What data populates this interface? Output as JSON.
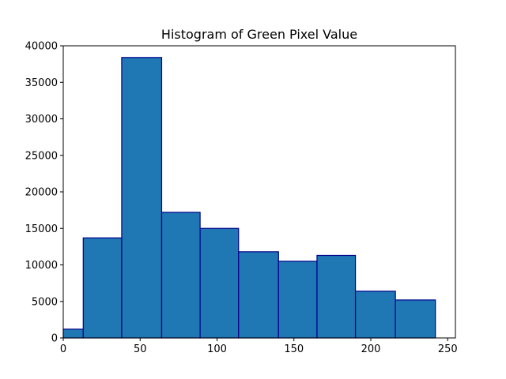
{
  "chart_data": {
    "type": "bar",
    "title": "Histogram of Green Pixel Value",
    "xlabel": "",
    "ylabel": "",
    "bin_edges": [
      0,
      13,
      38,
      64,
      89,
      114,
      140,
      165,
      190,
      216,
      242
    ],
    "values": [
      1200,
      13700,
      38400,
      17200,
      15000,
      11800,
      10500,
      11300,
      6400,
      5200
    ],
    "xlim": [
      0,
      255
    ],
    "ylim": [
      0,
      40000
    ],
    "xticks": [
      0,
      50,
      100,
      150,
      200,
      250
    ],
    "yticks": [
      0,
      5000,
      10000,
      15000,
      20000,
      25000,
      30000,
      35000,
      40000
    ],
    "colors": {
      "bar_fill": "#1f77b4",
      "bar_edge": "#00008b"
    },
    "grid": false,
    "legend": "none"
  }
}
